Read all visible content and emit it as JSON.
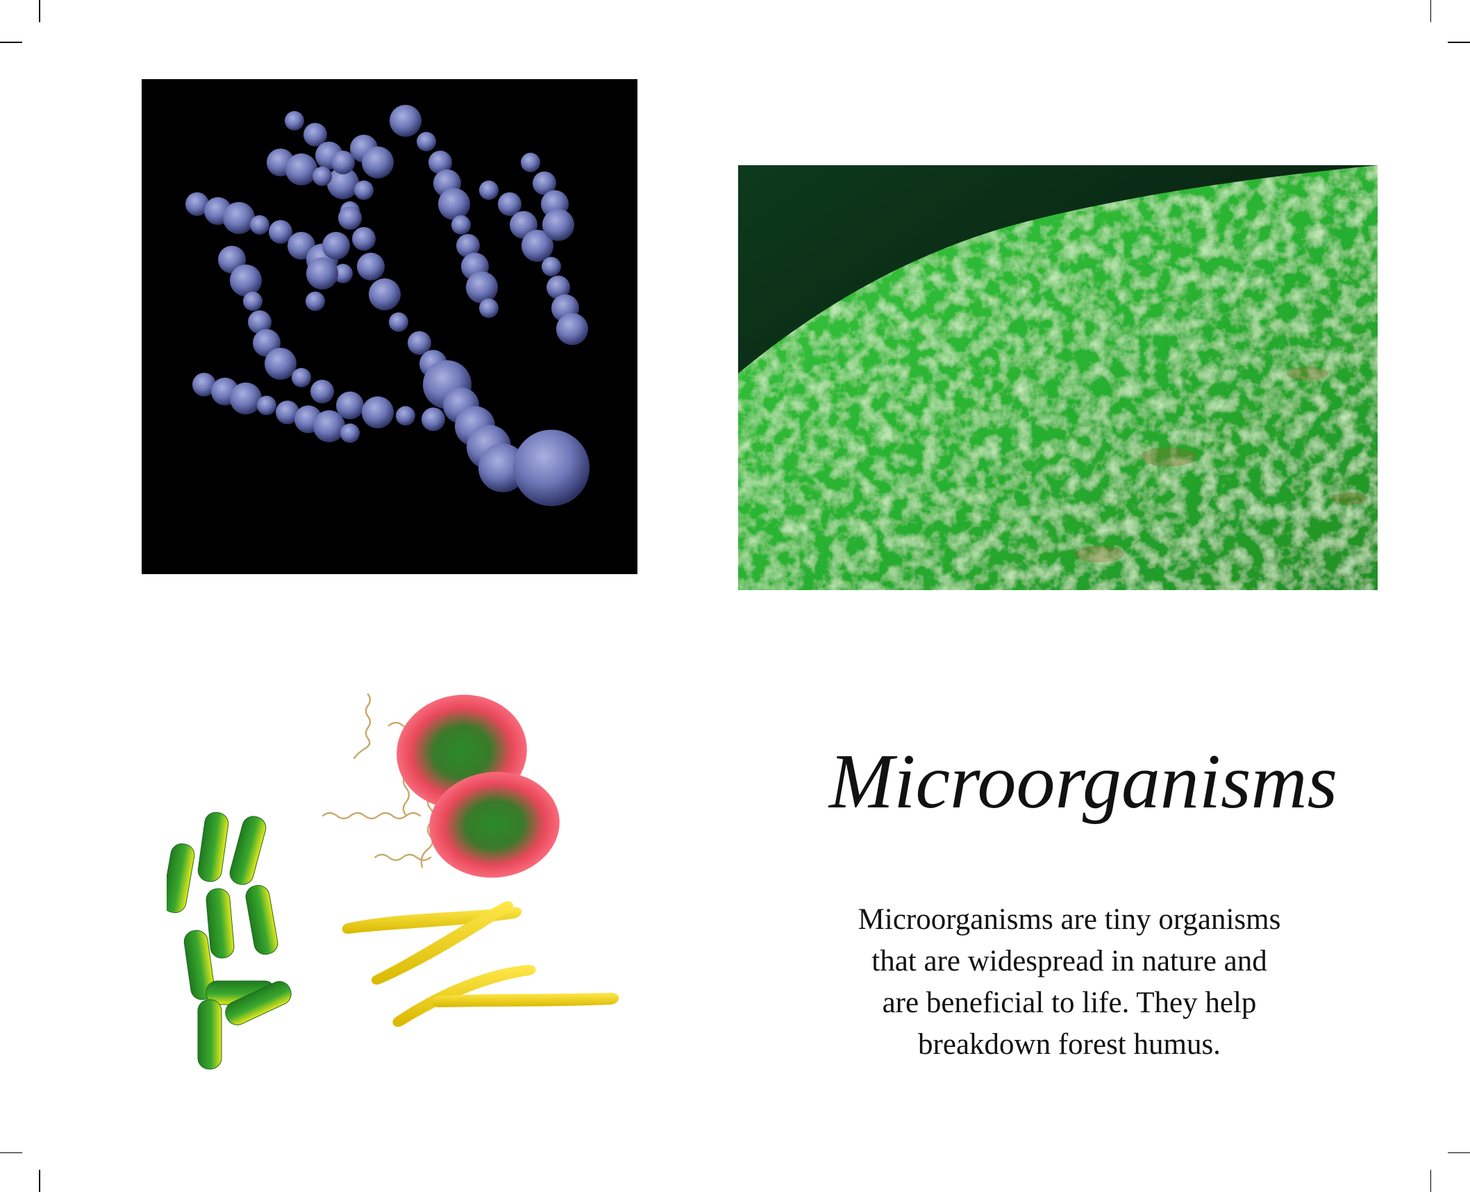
{
  "page": {
    "background": "#ffffff",
    "crop_marks": true
  },
  "images": {
    "bacteria_photo": {
      "description_icon": "chain-bacteria-photo",
      "colors": {
        "bg": "#000000",
        "cell": "#6f78b8"
      }
    },
    "algae_photo": {
      "description_icon": "green-microbial-mat-photo",
      "colors": {
        "bg": "#0b1f12",
        "surface": "#2fbf3a"
      }
    },
    "illustration": {
      "description_icon": "microbe-illustration",
      "colors": {
        "rod": "#2f9a2a",
        "rod_highlight": "#e6e81a",
        "spirochete": "#c9a86a",
        "banana": "#f2d40f",
        "coccus_outer": "#e8485a",
        "coccus_inner": "#2a8a2a"
      }
    }
  },
  "title": "Microorganisms",
  "description": {
    "lines": [
      "Microorganisms are tiny organisms",
      "that are widespread in nature and",
      "are beneficial to life. They help",
      "breakdown forest humus."
    ]
  }
}
